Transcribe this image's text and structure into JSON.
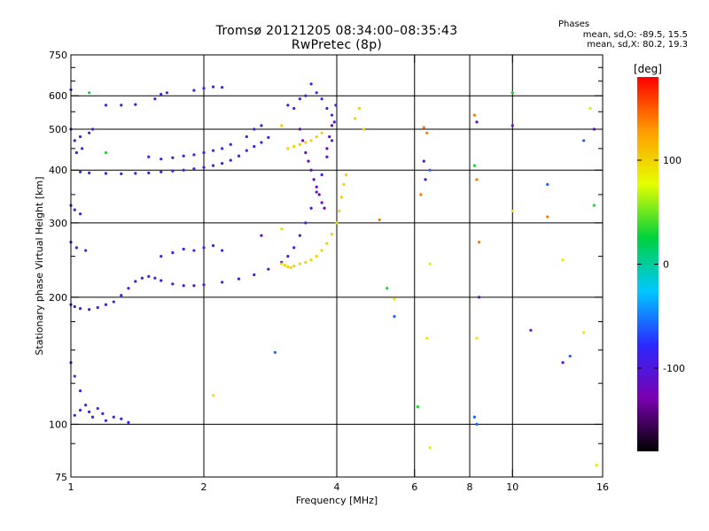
{
  "header": {
    "title": "Tromsø 20121205 08:34:00–08:35:43",
    "subtitle": "RwPretec (8p)"
  },
  "stats": {
    "heading": "Phases",
    "line_o": "mean, sd,O: -89.5, 15.5",
    "line_x": "mean, sd,X:  80.2, 19.3"
  },
  "chart_data": {
    "type": "scatter",
    "title": "Tromsø 20121205 08:34:00–08:35:43",
    "subtitle": "RwPretec (8p)",
    "xlabel": "Frequency [MHz]",
    "ylabel": "Stationary phase Virtual Height [km]",
    "x_scale": "log2",
    "y_scale": "log",
    "xlim": [
      1,
      16
    ],
    "ylim": [
      75,
      750
    ],
    "x_ticks": [
      1,
      2,
      4,
      6,
      8,
      10,
      16
    ],
    "x_tick_labels": [
      "1",
      "2",
      "4",
      "6",
      "8",
      "10",
      "16"
    ],
    "y_ticks": [
      75,
      100,
      200,
      300,
      400,
      500,
      600,
      750
    ],
    "y_tick_labels": [
      "75",
      "100",
      "200",
      "300",
      "400",
      "500",
      "600",
      "750"
    ],
    "y_minor_ticks": [
      90,
      125,
      150,
      175,
      250,
      350,
      450,
      550,
      650,
      700
    ],
    "grid": true,
    "x_grid": [
      2,
      4,
      6,
      8,
      10
    ],
    "y_grid": [
      100,
      200,
      300,
      400,
      500,
      600
    ],
    "colorbar": {
      "label": "[deg]",
      "range": [
        -180,
        180
      ],
      "ticks": [
        -100,
        0,
        100
      ],
      "tick_labels": [
        "-100",
        "0",
        "100"
      ],
      "colors": [
        "#000000",
        "#7a00b0",
        "#2a2aff",
        "#00c8ff",
        "#00d23c",
        "#e6ff00",
        "#ff9a00",
        "#ff0000"
      ]
    },
    "series": [
      {
        "phase": -100,
        "points": [
          [
            1.0,
            192
          ],
          [
            1.02,
            190
          ],
          [
            1.05,
            188
          ],
          [
            1.1,
            187
          ],
          [
            1.15,
            189
          ],
          [
            1.2,
            192
          ],
          [
            1.25,
            195
          ],
          [
            1.3,
            202
          ],
          [
            1.35,
            210
          ],
          [
            1.4,
            218
          ],
          [
            1.45,
            222
          ],
          [
            1.5,
            224
          ],
          [
            1.55,
            222
          ],
          [
            1.6,
            219
          ],
          [
            1.7,
            215
          ],
          [
            1.8,
            213
          ],
          [
            1.9,
            213
          ],
          [
            2.0,
            214
          ],
          [
            2.2,
            217
          ],
          [
            2.4,
            221
          ],
          [
            2.6,
            226
          ],
          [
            2.8,
            233
          ],
          [
            3.0,
            242
          ],
          [
            3.1,
            250
          ],
          [
            3.2,
            262
          ],
          [
            3.3,
            280
          ],
          [
            3.4,
            300
          ],
          [
            3.5,
            325
          ],
          [
            3.6,
            355
          ],
          [
            3.7,
            390
          ],
          [
            3.8,
            430
          ],
          [
            3.9,
            470
          ],
          [
            3.95,
            520
          ],
          [
            3.98,
            570
          ]
        ]
      },
      {
        "phase": -95,
        "points": [
          [
            1.05,
            396
          ],
          [
            1.1,
            394
          ],
          [
            1.2,
            393
          ],
          [
            1.3,
            392
          ],
          [
            1.4,
            393
          ],
          [
            1.5,
            394
          ],
          [
            1.6,
            396
          ],
          [
            1.7,
            398
          ],
          [
            1.8,
            400
          ],
          [
            1.9,
            403
          ],
          [
            2.0,
            406
          ],
          [
            2.1,
            410
          ],
          [
            2.2,
            415
          ],
          [
            2.3,
            422
          ],
          [
            2.4,
            432
          ],
          [
            2.5,
            445
          ],
          [
            2.6,
            455
          ],
          [
            2.7,
            465
          ],
          [
            2.8,
            478
          ]
        ]
      },
      {
        "phase": -90,
        "points": [
          [
            1.02,
            105
          ],
          [
            1.05,
            108
          ],
          [
            1.08,
            111
          ],
          [
            1.1,
            107
          ],
          [
            1.12,
            104
          ],
          [
            1.15,
            109
          ],
          [
            1.18,
            106
          ],
          [
            1.2,
            102
          ],
          [
            1.25,
            104
          ],
          [
            1.3,
            103
          ],
          [
            1.35,
            101
          ],
          [
            1.0,
            140
          ],
          [
            1.02,
            130
          ],
          [
            1.05,
            120
          ],
          [
            1.0,
            330
          ],
          [
            1.02,
            322
          ],
          [
            1.05,
            315
          ],
          [
            1.0,
            270
          ],
          [
            1.03,
            262
          ],
          [
            1.08,
            258
          ],
          [
            1.02,
            470
          ],
          [
            1.05,
            480
          ],
          [
            1.1,
            490
          ],
          [
            1.12,
            500
          ],
          [
            1.03,
            440
          ],
          [
            1.06,
            450
          ],
          [
            1.2,
            570
          ],
          [
            1.3,
            570
          ],
          [
            1.4,
            572
          ],
          [
            1.55,
            590
          ],
          [
            1.6,
            605
          ],
          [
            1.65,
            610
          ],
          [
            1.9,
            618
          ],
          [
            2.0,
            625
          ],
          [
            2.1,
            630
          ],
          [
            2.2,
            628
          ],
          [
            1.0,
            500
          ],
          [
            1.0,
            620
          ],
          [
            3.1,
            570
          ],
          [
            3.2,
            560
          ],
          [
            3.3,
            590
          ],
          [
            3.4,
            600
          ],
          [
            3.5,
            640
          ],
          [
            3.6,
            610
          ],
          [
            3.7,
            590
          ],
          [
            3.8,
            560
          ],
          [
            3.9,
            540
          ],
          [
            1.6,
            250
          ],
          [
            1.7,
            255
          ],
          [
            1.8,
            260
          ],
          [
            1.9,
            258
          ],
          [
            2.0,
            262
          ],
          [
            2.1,
            265
          ],
          [
            2.2,
            258
          ],
          [
            1.5,
            430
          ],
          [
            1.6,
            425
          ],
          [
            1.7,
            428
          ],
          [
            1.8,
            432
          ],
          [
            1.9,
            435
          ],
          [
            2.0,
            440
          ],
          [
            2.1,
            445
          ],
          [
            2.2,
            450
          ],
          [
            2.3,
            460
          ],
          [
            2.5,
            480
          ],
          [
            2.6,
            500
          ],
          [
            2.7,
            510
          ]
        ]
      },
      {
        "phase": -120,
        "points": [
          [
            3.3,
            500
          ],
          [
            3.35,
            470
          ],
          [
            3.4,
            440
          ],
          [
            3.45,
            420
          ],
          [
            3.5,
            400
          ],
          [
            3.55,
            380
          ],
          [
            3.6,
            365
          ],
          [
            3.65,
            350
          ],
          [
            3.7,
            335
          ],
          [
            3.75,
            325
          ],
          [
            3.8,
            450
          ],
          [
            3.85,
            480
          ],
          [
            3.9,
            510
          ]
        ]
      },
      {
        "phase": 100,
        "points": [
          [
            3.0,
            240
          ],
          [
            3.05,
            238
          ],
          [
            3.1,
            236
          ],
          [
            3.15,
            235
          ],
          [
            3.2,
            237
          ],
          [
            3.3,
            240
          ],
          [
            3.4,
            242
          ],
          [
            3.5,
            245
          ],
          [
            3.6,
            250
          ],
          [
            3.7,
            258
          ],
          [
            3.8,
            268
          ],
          [
            3.9,
            282
          ],
          [
            4.0,
            300
          ],
          [
            4.05,
            320
          ],
          [
            4.1,
            345
          ],
          [
            4.15,
            370
          ],
          [
            4.2,
            390
          ],
          [
            3.1,
            450
          ],
          [
            3.2,
            455
          ],
          [
            3.3,
            460
          ],
          [
            3.4,
            465
          ],
          [
            3.5,
            470
          ],
          [
            3.6,
            480
          ],
          [
            3.7,
            490
          ],
          [
            3.0,
            510
          ],
          [
            4.4,
            530
          ],
          [
            4.5,
            560
          ],
          [
            4.6,
            500
          ]
        ]
      },
      {
        "phase": 140,
        "points": [
          [
            6.3,
            505
          ],
          [
            6.4,
            490
          ],
          [
            8.2,
            540
          ],
          [
            8.3,
            380
          ],
          [
            8.4,
            270
          ],
          [
            10.0,
            610
          ],
          [
            12.0,
            310
          ],
          [
            6.2,
            350
          ],
          [
            5.0,
            305
          ]
        ]
      },
      {
        "phase": 90,
        "points": [
          [
            3.0,
            290
          ],
          [
            6.4,
            160
          ],
          [
            6.5,
            88
          ],
          [
            8.3,
            160
          ],
          [
            10.0,
            320
          ],
          [
            13.0,
            245
          ],
          [
            14.5,
            165
          ],
          [
            15.0,
            560
          ],
          [
            15.5,
            80
          ],
          [
            2.1,
            117
          ],
          [
            5.4,
            198
          ],
          [
            6.5,
            240
          ]
        ]
      },
      {
        "phase": 30,
        "points": [
          [
            1.1,
            610
          ],
          [
            1.2,
            440
          ],
          [
            8.2,
            410
          ],
          [
            15.3,
            330
          ],
          [
            10.0,
            610
          ],
          [
            5.2,
            210
          ],
          [
            6.1,
            110
          ]
        ]
      },
      {
        "phase": -60,
        "points": [
          [
            14.5,
            470
          ],
          [
            13.5,
            145
          ],
          [
            8.3,
            100
          ],
          [
            12.0,
            370
          ],
          [
            5.4,
            180
          ],
          [
            2.9,
            148
          ],
          [
            8.2,
            104
          ],
          [
            6.5,
            400
          ]
        ]
      },
      {
        "phase": -110,
        "points": [
          [
            6.3,
            420
          ],
          [
            6.35,
            380
          ],
          [
            8.3,
            520
          ],
          [
            10.0,
            510
          ],
          [
            15.3,
            500
          ],
          [
            11.0,
            167
          ],
          [
            13.0,
            140
          ],
          [
            8.4,
            200
          ],
          [
            2.7,
            280
          ]
        ]
      }
    ]
  }
}
